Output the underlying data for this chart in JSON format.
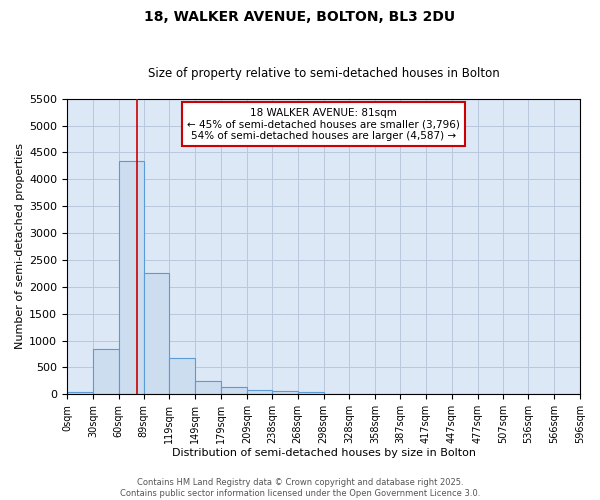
{
  "title": "18, WALKER AVENUE, BOLTON, BL3 2DU",
  "subtitle": "Size of property relative to semi-detached houses in Bolton",
  "xlabel": "Distribution of semi-detached houses by size in Bolton",
  "ylabel": "Number of semi-detached properties",
  "bin_edges": [
    0,
    30,
    60,
    89,
    119,
    149,
    179,
    209,
    238,
    268,
    298,
    328,
    358,
    387,
    417,
    447,
    477,
    507,
    536,
    566,
    596
  ],
  "bar_heights": [
    50,
    850,
    4350,
    2250,
    680,
    250,
    130,
    70,
    55,
    50,
    0,
    0,
    0,
    0,
    0,
    0,
    0,
    0,
    0,
    0
  ],
  "bar_color": "#cdddf0",
  "bar_edgecolor": "#5b9bd5",
  "bar_linewidth": 0.8,
  "grid_color": "#b8c8dc",
  "axes_bg_color": "#dce8f5",
  "fig_bg_color": "#ffffff",
  "property_line_x": 81,
  "property_line_color": "#cc0000",
  "annotation_title": "18 WALKER AVENUE: 81sqm",
  "annotation_line1": "← 45% of semi-detached houses are smaller (3,796)",
  "annotation_line2": "54% of semi-detached houses are larger (4,587) →",
  "annotation_box_facecolor": "#ffffff",
  "annotation_box_edgecolor": "#cc0000",
  "ylim": [
    0,
    5500
  ],
  "yticks": [
    0,
    500,
    1000,
    1500,
    2000,
    2500,
    3000,
    3500,
    4000,
    4500,
    5000,
    5500
  ],
  "tick_labels": [
    "0sqm",
    "30sqm",
    "60sqm",
    "89sqm",
    "119sqm",
    "149sqm",
    "179sqm",
    "209sqm",
    "238sqm",
    "268sqm",
    "298sqm",
    "328sqm",
    "358sqm",
    "387sqm",
    "417sqm",
    "447sqm",
    "477sqm",
    "507sqm",
    "536sqm",
    "566sqm",
    "596sqm"
  ],
  "title_fontsize": 10,
  "subtitle_fontsize": 8.5,
  "xlabel_fontsize": 8,
  "ylabel_fontsize": 8,
  "ytick_fontsize": 8,
  "xtick_fontsize": 7,
  "annotation_fontsize": 7.5,
  "footer1": "Contains HM Land Registry data © Crown copyright and database right 2025.",
  "footer2": "Contains public sector information licensed under the Open Government Licence 3.0.",
  "footer_fontsize": 6
}
